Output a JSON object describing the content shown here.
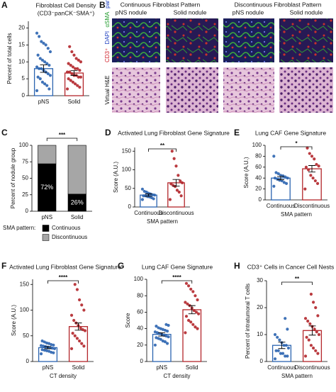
{
  "chart_data": [
    {
      "type": "bar",
      "panel": "A",
      "title": "Fibroblast Cell Density",
      "subtitle": "(CD3⁻panCK⁻SMA⁺)",
      "y_label": "Percent of total cells",
      "categories": [
        "pNS",
        "Solid"
      ],
      "values": [
        8,
        6.7
      ],
      "errors": [
        1.1,
        0.7
      ],
      "colors": [
        "#2b64b0",
        "#b3262b"
      ],
      "points": [
        [
          1.5,
          2,
          3,
          3.5,
          4,
          5,
          5.5,
          6,
          6.5,
          7,
          7.5,
          8,
          8,
          8.5,
          9,
          9.5,
          10,
          10.5,
          11,
          12,
          13,
          14,
          15,
          15.5,
          16,
          17.5,
          18.5
        ],
        [
          2,
          2.5,
          3,
          3.5,
          4,
          4.5,
          5,
          5.5,
          5.5,
          6,
          6,
          6.5,
          7,
          7,
          7.5,
          8,
          8,
          8.5,
          9,
          9.5,
          10,
          10.5,
          11,
          12,
          13,
          14.5
        ]
      ],
      "ylim": [
        0,
        22
      ],
      "yticks": [
        0,
        5,
        10,
        15,
        20
      ]
    },
    {
      "type": "stacked",
      "panel": "C",
      "y_label": "Percent of nodule group",
      "categories": [
        "pNS",
        "Solid"
      ],
      "series": [
        {
          "name": "Continuous",
          "color": "#000000",
          "values": [
            72,
            26
          ],
          "value_labels": [
            "72%",
            "26%"
          ]
        },
        {
          "name": "Discontinuous",
          "color": "#a6a6a6",
          "values": [
            28,
            74
          ]
        }
      ],
      "legend_title": "SMA pattern:",
      "sig": "***",
      "ylim": [
        0,
        100
      ],
      "yticks": [
        0,
        25,
        50,
        75,
        100
      ]
    },
    {
      "type": "bar",
      "panel": "D",
      "title": "Activated Lung Fibroblast Gene Signature",
      "y_label": "Score (A.U.)",
      "x_label": "SMA pattern",
      "categories": [
        "Continuous",
        "Discontinuous"
      ],
      "values": [
        32,
        65
      ],
      "errors": [
        3,
        9
      ],
      "colors": [
        "#2b64b0",
        "#b3262b"
      ],
      "points": [
        [
          20,
          22,
          25,
          27,
          28,
          30,
          30,
          32,
          33,
          35,
          37,
          40,
          42,
          48
        ],
        [
          20,
          30,
          40,
          45,
          55,
          58,
          62,
          65,
          70,
          85,
          110,
          130,
          150
        ]
      ],
      "sig": "**",
      "ylim": [
        0,
        160
      ],
      "yticks": [
        0,
        50,
        100,
        150
      ]
    },
    {
      "type": "bar",
      "panel": "E",
      "title": "Lung CAF Gene Signature",
      "y_label": "Score (A.U.)",
      "x_label": "SMA pattern",
      "categories": [
        "Continuous",
        "Discontinuous"
      ],
      "values": [
        40,
        57
      ],
      "errors": [
        3,
        6
      ],
      "colors": [
        "#2b64b0",
        "#b3262b"
      ],
      "points": [
        [
          25,
          30,
          32,
          35,
          36,
          38,
          40,
          40,
          42,
          44,
          45,
          48,
          50,
          80
        ],
        [
          20,
          30,
          35,
          40,
          45,
          55,
          60,
          62,
          65,
          75,
          80,
          85,
          95
        ]
      ],
      "sig": "*",
      "ylim": [
        0,
        100
      ],
      "yticks": [
        0,
        20,
        40,
        60,
        80,
        100
      ]
    },
    {
      "type": "bar",
      "panel": "F",
      "title": "Activated Lung Fibroblast Gene Signature",
      "y_label": "Score (A.U.)",
      "x_label": "CT density",
      "categories": [
        "pNS",
        "Solid"
      ],
      "values": [
        27,
        68
      ],
      "errors": [
        2,
        7
      ],
      "colors": [
        "#2b64b0",
        "#b3262b"
      ],
      "points": [
        [
          15,
          17,
          18,
          20,
          21,
          22,
          23,
          25,
          26,
          27,
          28,
          29,
          30,
          31,
          32,
          33,
          35,
          36,
          38,
          40
        ],
        [
          25,
          30,
          35,
          40,
          45,
          50,
          55,
          60,
          62,
          65,
          70,
          75,
          80,
          90,
          100,
          110,
          120,
          140,
          150
        ]
      ],
      "sig": "****",
      "ylim": [
        0,
        160
      ],
      "yticks": [
        0,
        50,
        100,
        150
      ]
    },
    {
      "type": "bar",
      "panel": "G",
      "title": "Lung CAF Gene Signature",
      "y_label": "Score",
      "x_label": "CT density",
      "categories": [
        "pNS",
        "Solid"
      ],
      "values": [
        33,
        63
      ],
      "errors": [
        2,
        5
      ],
      "colors": [
        "#2b64b0",
        "#b3262b"
      ],
      "points": [
        [
          20,
          22,
          24,
          25,
          27,
          28,
          29,
          30,
          31,
          32,
          33,
          34,
          35,
          36,
          37,
          38,
          39,
          40,
          41,
          43,
          44,
          45
        ],
        [
          35,
          40,
          42,
          45,
          48,
          50,
          55,
          58,
          60,
          62,
          65,
          68,
          70,
          72,
          75,
          80,
          85,
          88,
          92,
          95
        ]
      ],
      "sig": "****",
      "ylim": [
        0,
        100
      ],
      "yticks": [
        0,
        20,
        40,
        60,
        80,
        100
      ]
    },
    {
      "type": "bar",
      "panel": "H",
      "title": "CD3⁺ Cells in Cancer Cell Nests",
      "y_label": "Percent of intratumoral T cells",
      "x_label": "SMA pattern",
      "categories": [
        "Continuous",
        "Discontinuous"
      ],
      "values": [
        6,
        11.5
      ],
      "errors": [
        1.2,
        1.7
      ],
      "colors": [
        "#2b64b0",
        "#b3262b"
      ],
      "points": [
        [
          1,
          2,
          2,
          3,
          3,
          4,
          4,
          5,
          6,
          6,
          7,
          8,
          9,
          10,
          12,
          16
        ],
        [
          2,
          3,
          4,
          5,
          6,
          8,
          9,
          10,
          11,
          12,
          13,
          14,
          15,
          16,
          17,
          20,
          22,
          25
        ]
      ],
      "sig": "**",
      "ylim": [
        0,
        30
      ],
      "yticks": [
        0,
        10,
        20,
        30
      ]
    }
  ],
  "panel_b": {
    "panel": "B",
    "groups": [
      "Continuous Fibroblast Pattern",
      "Discontinuous Fibroblast Pattern"
    ],
    "columns": [
      "pNS nodule",
      "Solid nodule",
      "pNS nodule",
      "Solid nodule"
    ],
    "stain_labels": [
      "CD3⁺",
      "DAPI",
      "αSMA",
      "panCK"
    ],
    "he_label": "Virtual H&E"
  }
}
